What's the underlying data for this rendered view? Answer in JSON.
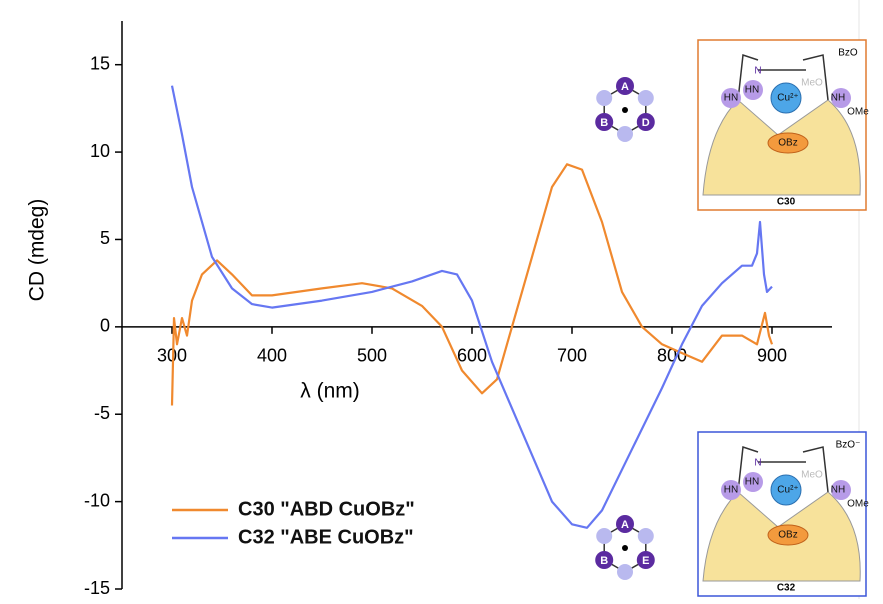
{
  "chart_data": {
    "type": "line",
    "xlabel": "λ (nm)",
    "ylabel": "CD (mdeg)",
    "xlim": [
      250,
      960
    ],
    "xticks": [
      300,
      400,
      500,
      600,
      700,
      800,
      900
    ],
    "ylim": [
      -15,
      17.5
    ],
    "yticks": [
      -15,
      -10,
      -5,
      0,
      5,
      10,
      15
    ],
    "legend": "lower left",
    "series": [
      {
        "name": "C30 \"ABD CuOBz\"",
        "color": "#f0892e",
        "x": [
          300,
          302,
          305,
          310,
          315,
          320,
          330,
          345,
          360,
          380,
          400,
          450,
          490,
          520,
          550,
          570,
          590,
          610,
          625,
          640,
          660,
          680,
          695,
          710,
          730,
          750,
          770,
          790,
          810,
          830,
          850,
          870,
          885,
          893,
          897,
          900
        ],
        "values": [
          -4.5,
          0.5,
          -1,
          0.5,
          -0.5,
          1.5,
          3,
          3.8,
          3,
          1.8,
          1.8,
          2.2,
          2.5,
          2.2,
          1.2,
          0,
          -2.5,
          -3.8,
          -3,
          0,
          4,
          8,
          9.3,
          9,
          6,
          2,
          0,
          -1,
          -1.5,
          -2,
          -0.5,
          -0.5,
          -1,
          0.8,
          -0.5,
          -1
        ]
      },
      {
        "name": "C32 \"ABE CuOBz\"",
        "color": "#6677f2",
        "x": [
          300,
          310,
          320,
          340,
          360,
          380,
          400,
          450,
          500,
          540,
          570,
          585,
          600,
          620,
          650,
          680,
          700,
          715,
          730,
          760,
          790,
          810,
          830,
          850,
          870,
          880,
          885,
          888,
          892,
          895,
          900
        ],
        "values": [
          13.8,
          11,
          8,
          4,
          2.2,
          1.3,
          1.1,
          1.5,
          2,
          2.6,
          3.2,
          3,
          1.5,
          -2,
          -6,
          -10,
          -11.3,
          -11.5,
          -10.5,
          -7,
          -3.5,
          -1,
          1.2,
          2.5,
          3.5,
          3.5,
          4.2,
          6,
          3,
          2,
          2.3
        ]
      }
    ],
    "insets": [
      {
        "label": "C30",
        "color": "#e07b30",
        "counter": "BzO",
        "texts": [
          "N",
          "HN",
          "HN",
          "Cu²⁺",
          "NH",
          "MeO",
          "OMe",
          "OBz"
        ]
      },
      {
        "label": "C32",
        "color": "#3b56d8",
        "counter": "BzO⁻",
        "texts": [
          "N",
          "HN",
          "HN",
          "Cu²⁺",
          "NH",
          "MeO",
          "OMe",
          "OBz"
        ]
      }
    ],
    "hexagons": [
      {
        "labels": [
          "A",
          "B",
          "D"
        ]
      },
      {
        "labels": [
          "A",
          "B",
          "E"
        ]
      }
    ]
  }
}
